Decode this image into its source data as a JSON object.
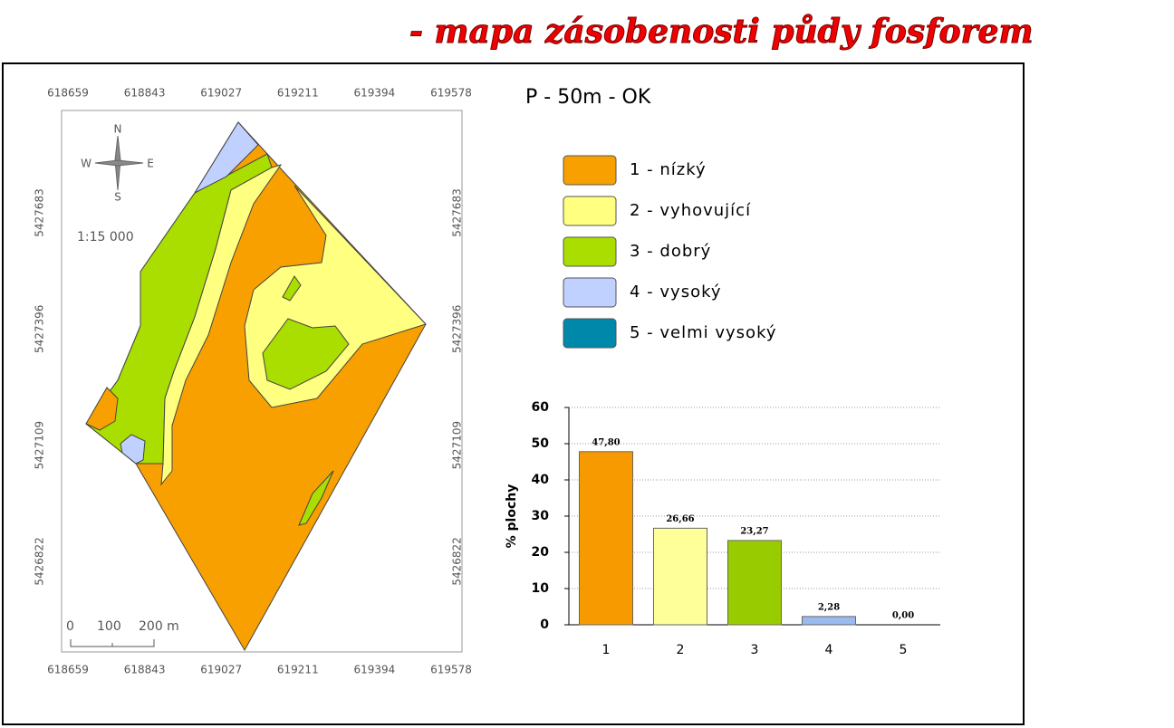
{
  "title": "- mapa zásobenosti půdy fosforem",
  "map": {
    "x_labels": [
      "618659",
      "618843",
      "619027",
      "619211",
      "619394",
      "619578"
    ],
    "y_labels": [
      "5427683",
      "5427396",
      "5427109",
      "5426822"
    ],
    "north": "N",
    "south": "S",
    "west": "W",
    "east": "E",
    "scale": "1:15 000",
    "scalebar": [
      "0",
      "100",
      "200 m"
    ]
  },
  "legend": {
    "title": "P - 50m - OK",
    "items": [
      {
        "label": "1 - nízký",
        "color": "#f7a000"
      },
      {
        "label": "2 - vyhovující",
        "color": "#ffff80"
      },
      {
        "label": "3 - dobrý",
        "color": "#aadd00"
      },
      {
        "label": "4 - vysoký",
        "color": "#c0d0ff"
      },
      {
        "label": "5 - velmi vysoký",
        "color": "#0088aa"
      }
    ]
  },
  "chart_data": {
    "type": "bar",
    "ylabel": "% plochy",
    "categories": [
      "1",
      "2",
      "3",
      "4",
      "5"
    ],
    "values": [
      47.8,
      26.66,
      23.27,
      2.28,
      0
    ],
    "value_labels": [
      "47,80",
      "26,66",
      "23,27",
      "2,28",
      "0,00"
    ],
    "colors": [
      "#f79a00",
      "#ffff99",
      "#99cc00",
      "#99bbee",
      "#0088aa"
    ],
    "ylim": [
      0,
      60
    ],
    "yticks": [
      0,
      10,
      20,
      30,
      40,
      50,
      60
    ],
    "grid": true
  }
}
